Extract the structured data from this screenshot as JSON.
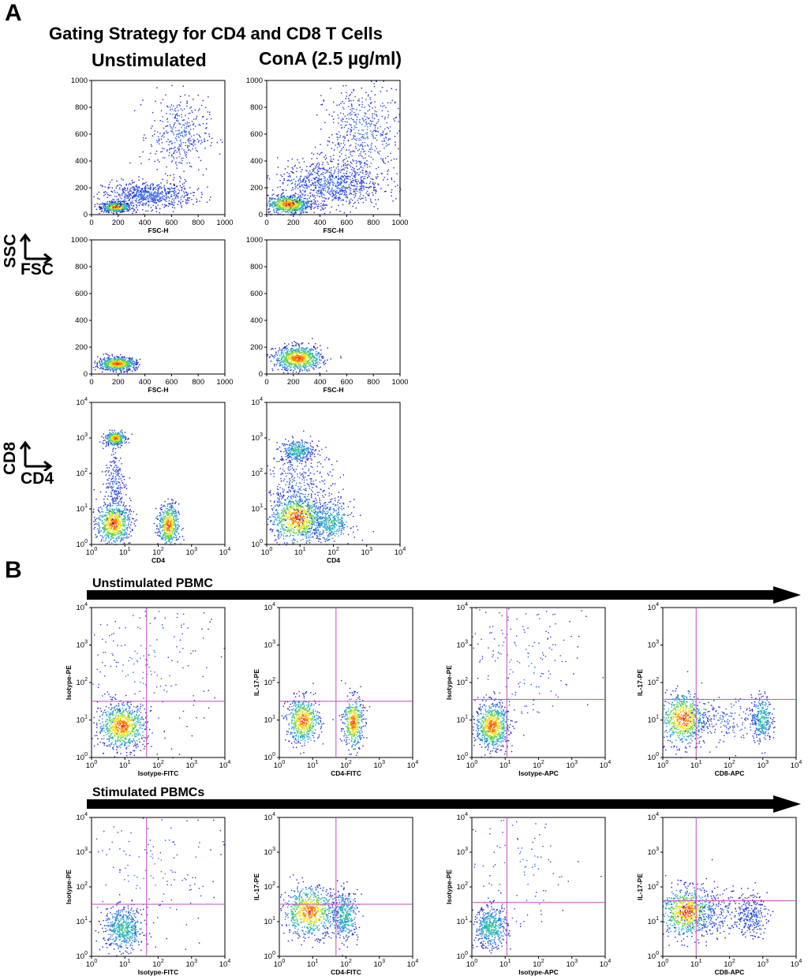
{
  "panel_a_label": "A",
  "panel_b_label": "B",
  "panel_a_title": "Gating Strategy for CD4 and CD8 T Cells",
  "conditions": [
    "Unstimulated",
    "ConA (2.5 µg/ml)"
  ],
  "side_labels": {
    "scatter_y": "SSC",
    "scatter_x": "FSC",
    "marker_y": "CD8",
    "marker_x": "CD4"
  },
  "row_labels_b": [
    "Unstimulated PBMC",
    "Stimulated PBMCs"
  ],
  "colors": {
    "density_low": "#1e2ad8",
    "density_mid": "#26b0c0",
    "density_high": "#ff2200",
    "quadrant": "#c04cc0",
    "arrow": "#000000"
  },
  "chart_data": [
    {
      "id": "a-unstim-all",
      "type": "scatter",
      "xlabel": "FSC-H",
      "ylabel": "",
      "xlim": [
        0,
        1000
      ],
      "ylim": [
        0,
        1000
      ],
      "scale": "linear",
      "xticks": [
        "0",
        "200",
        "400",
        "600",
        "800",
        "1000"
      ],
      "yticks": [
        "0",
        "200",
        "400",
        "600",
        "800",
        "1000"
      ],
      "clusters": [
        {
          "x": 180,
          "y": 60,
          "spread": [
            55,
            18
          ],
          "n": 600,
          "density": "high"
        },
        {
          "x": 420,
          "y": 150,
          "spread": [
            170,
            50
          ],
          "n": 700,
          "density": "low"
        },
        {
          "x": 650,
          "y": 600,
          "spread": [
            110,
            140
          ],
          "n": 380,
          "density": "low"
        }
      ]
    },
    {
      "id": "a-cona-all",
      "type": "scatter",
      "xlabel": "FSC-H",
      "ylabel": "",
      "xlim": [
        0,
        1000
      ],
      "ylim": [
        0,
        1000
      ],
      "scale": "linear",
      "xticks": [
        "0",
        "200",
        "400",
        "600",
        "800",
        "1000"
      ],
      "yticks": [
        "0",
        "200",
        "400",
        "600",
        "800",
        "1000"
      ],
      "clusters": [
        {
          "x": 160,
          "y": 80,
          "spread": [
            80,
            35
          ],
          "n": 700,
          "density": "high"
        },
        {
          "x": 480,
          "y": 230,
          "spread": [
            200,
            90
          ],
          "n": 900,
          "density": "low"
        },
        {
          "x": 720,
          "y": 620,
          "spread": [
            140,
            170
          ],
          "n": 500,
          "density": "low"
        }
      ]
    },
    {
      "id": "a-unstim-gated",
      "type": "scatter",
      "xlabel": "FSC-H",
      "ylabel": "",
      "xlim": [
        0,
        1000
      ],
      "ylim": [
        0,
        1000
      ],
      "scale": "linear",
      "xticks": [
        "0",
        "200",
        "400",
        "600",
        "800",
        "1000"
      ],
      "yticks": [
        "0",
        "200",
        "400",
        "600",
        "800",
        "1000"
      ],
      "clusters": [
        {
          "x": 190,
          "y": 80,
          "spread": [
            70,
            25
          ],
          "n": 700,
          "density": "high"
        }
      ]
    },
    {
      "id": "a-cona-gated",
      "type": "scatter",
      "xlabel": "FSC-H",
      "ylabel": "",
      "xlim": [
        0,
        1000
      ],
      "ylim": [
        0,
        1000
      ],
      "scale": "linear",
      "xticks": [
        "0",
        "200",
        "400",
        "600",
        "800",
        "1000"
      ],
      "yticks": [
        "0",
        "200",
        "400",
        "600",
        "800",
        "1000"
      ],
      "clusters": [
        {
          "x": 230,
          "y": 120,
          "spread": [
            90,
            45
          ],
          "n": 800,
          "density": "high"
        }
      ]
    },
    {
      "id": "a-unstim-cd4cd8",
      "type": "scatter",
      "xlabel": "CD4",
      "ylabel": "",
      "xlim": [
        0,
        4
      ],
      "ylim": [
        0,
        4
      ],
      "scale": "log",
      "xticks": [
        "10",
        "10",
        "10",
        "10",
        "10"
      ],
      "yticks": [
        "10",
        "10",
        "10",
        "10",
        "10"
      ],
      "exponents": [
        "0",
        "1",
        "2",
        "3",
        "4"
      ],
      "clusters": [
        {
          "x": 0.7,
          "y": 3.0,
          "spread": [
            0.15,
            0.1
          ],
          "n": 350,
          "density": "high"
        },
        {
          "x": 0.65,
          "y": 0.6,
          "spread": [
            0.25,
            0.3
          ],
          "n": 700,
          "density": "high"
        },
        {
          "x": 2.3,
          "y": 0.55,
          "spread": [
            0.15,
            0.3
          ],
          "n": 500,
          "density": "high"
        },
        {
          "x": 0.7,
          "y": 1.8,
          "spread": [
            0.15,
            0.5
          ],
          "n": 200,
          "density": "low"
        }
      ]
    },
    {
      "id": "a-cona-cd4cd8",
      "type": "scatter",
      "xlabel": "CD4",
      "ylabel": "",
      "xlim": [
        0,
        4
      ],
      "ylim": [
        0,
        4
      ],
      "scale": "log",
      "xticks": [
        "10",
        "10",
        "10",
        "10",
        "10"
      ],
      "yticks": [
        "10",
        "10",
        "10",
        "10",
        "10"
      ],
      "exponents": [
        "0",
        "1",
        "2",
        "3",
        "4"
      ],
      "clusters": [
        {
          "x": 0.9,
          "y": 2.65,
          "spread": [
            0.25,
            0.15
          ],
          "n": 300,
          "density": "mid"
        },
        {
          "x": 0.9,
          "y": 0.75,
          "spread": [
            0.4,
            0.35
          ],
          "n": 900,
          "density": "high"
        },
        {
          "x": 1.9,
          "y": 0.65,
          "spread": [
            0.3,
            0.3
          ],
          "n": 400,
          "density": "mid"
        },
        {
          "x": 1.0,
          "y": 1.7,
          "spread": [
            0.5,
            0.55
          ],
          "n": 350,
          "density": "low"
        }
      ]
    },
    {
      "id": "b-unstim-1",
      "type": "scatter",
      "xlabel": "Isotype-FITC",
      "ylabel": "Isotype-PE",
      "xlim": [
        0,
        4
      ],
      "ylim": [
        0,
        4
      ],
      "scale": "log",
      "quadrant": [
        1.65,
        1.5
      ],
      "xticks": [
        "10",
        "10",
        "10",
        "10",
        "10"
      ],
      "yticks": [
        "10",
        "10",
        "10",
        "10",
        "10"
      ],
      "exponents": [
        "0",
        "1",
        "2",
        "3",
        "4"
      ],
      "clusters": [
        {
          "x": 0.9,
          "y": 0.85,
          "spread": [
            0.35,
            0.3
          ],
          "n": 800,
          "density": "high"
        },
        {
          "x": 1.5,
          "y": 2.5,
          "spread": [
            1.2,
            1.2
          ],
          "n": 250,
          "density": "low"
        }
      ]
    },
    {
      "id": "b-unstim-2",
      "type": "scatter",
      "xlabel": "CD4-FITC",
      "ylabel": "IL-17-PE",
      "xlim": [
        0,
        4
      ],
      "ylim": [
        0,
        4
      ],
      "scale": "log",
      "quadrant": [
        1.7,
        1.5
      ],
      "xticks": [
        "10",
        "10",
        "10",
        "10",
        "10"
      ],
      "yticks": [
        "10",
        "10",
        "10",
        "10",
        "10"
      ],
      "exponents": [
        "0",
        "1",
        "2",
        "3",
        "4"
      ],
      "clusters": [
        {
          "x": 0.7,
          "y": 1.0,
          "spread": [
            0.25,
            0.3
          ],
          "n": 600,
          "density": "high"
        },
        {
          "x": 2.2,
          "y": 0.95,
          "spread": [
            0.15,
            0.35
          ],
          "n": 450,
          "density": "high"
        }
      ]
    },
    {
      "id": "b-unstim-3",
      "type": "scatter",
      "xlabel": "Isotype-APC",
      "ylabel": "Isotype-PE",
      "xlim": [
        0,
        4
      ],
      "ylim": [
        0,
        4
      ],
      "scale": "log",
      "quadrant": [
        1.05,
        1.55
      ],
      "xticks": [
        "10",
        "10",
        "10",
        "10",
        "10"
      ],
      "yticks": [
        "10",
        "10",
        "10",
        "10",
        "10"
      ],
      "exponents": [
        "0",
        "1",
        "2",
        "3",
        "4"
      ],
      "clusters": [
        {
          "x": 0.6,
          "y": 0.85,
          "spread": [
            0.25,
            0.3
          ],
          "n": 750,
          "density": "high"
        },
        {
          "x": 1.3,
          "y": 2.6,
          "spread": [
            1.0,
            1.1
          ],
          "n": 220,
          "density": "low"
        }
      ]
    },
    {
      "id": "b-unstim-4",
      "type": "scatter",
      "xlabel": "CD8-APC",
      "ylabel": "IL-17-PE",
      "xlim": [
        0,
        4
      ],
      "ylim": [
        0,
        4
      ],
      "scale": "log",
      "quadrant": [
        1.0,
        1.55
      ],
      "xticks": [
        "10",
        "10",
        "10",
        "10",
        "10"
      ],
      "yticks": [
        "10",
        "10",
        "10",
        "10",
        "10"
      ],
      "exponents": [
        "0",
        "1",
        "2",
        "3",
        "4"
      ],
      "clusters": [
        {
          "x": 0.6,
          "y": 1.05,
          "spread": [
            0.35,
            0.35
          ],
          "n": 700,
          "density": "high"
        },
        {
          "x": 2.95,
          "y": 1.05,
          "spread": [
            0.15,
            0.3
          ],
          "n": 300,
          "density": "mid"
        },
        {
          "x": 1.8,
          "y": 1.0,
          "spread": [
            0.6,
            0.3
          ],
          "n": 200,
          "density": "low"
        }
      ]
    },
    {
      "id": "b-stim-1",
      "type": "scatter",
      "xlabel": "Isotype-FITC",
      "ylabel": "Isotype-PE",
      "xlim": [
        0,
        4
      ],
      "ylim": [
        0,
        4
      ],
      "scale": "log",
      "quadrant": [
        1.65,
        1.5
      ],
      "xticks": [
        "10",
        "10",
        "10",
        "10",
        "10"
      ],
      "yticks": [
        "10",
        "10",
        "10",
        "10",
        "10"
      ],
      "exponents": [
        "0",
        "1",
        "2",
        "3",
        "4"
      ],
      "clusters": [
        {
          "x": 0.95,
          "y": 0.8,
          "spread": [
            0.3,
            0.3
          ],
          "n": 550,
          "density": "mid"
        },
        {
          "x": 1.6,
          "y": 2.4,
          "spread": [
            1.2,
            1.2
          ],
          "n": 150,
          "density": "low"
        }
      ]
    },
    {
      "id": "b-stim-2",
      "type": "scatter",
      "xlabel": "CD4-FITC",
      "ylabel": "IL-17-PE",
      "xlim": [
        0,
        4
      ],
      "ylim": [
        0,
        4
      ],
      "scale": "log",
      "quadrant": [
        1.7,
        1.5
      ],
      "xticks": [
        "10",
        "10",
        "10",
        "10",
        "10"
      ],
      "yticks": [
        "10",
        "10",
        "10",
        "10",
        "10"
      ],
      "exponents": [
        "0",
        "1",
        "2",
        "3",
        "4"
      ],
      "clusters": [
        {
          "x": 0.9,
          "y": 1.3,
          "spread": [
            0.4,
            0.35
          ],
          "n": 750,
          "density": "high"
        },
        {
          "x": 1.95,
          "y": 1.2,
          "spread": [
            0.2,
            0.35
          ],
          "n": 400,
          "density": "mid"
        }
      ]
    },
    {
      "id": "b-stim-3",
      "type": "scatter",
      "xlabel": "Isotype-APC",
      "ylabel": "Isotype-PE",
      "xlim": [
        0,
        4
      ],
      "ylim": [
        0,
        4
      ],
      "scale": "log",
      "quadrant": [
        1.05,
        1.55
      ],
      "xticks": [
        "10",
        "10",
        "10",
        "10",
        "10"
      ],
      "yticks": [
        "10",
        "10",
        "10",
        "10",
        "10"
      ],
      "exponents": [
        "0",
        "1",
        "2",
        "3",
        "4"
      ],
      "clusters": [
        {
          "x": 0.55,
          "y": 0.85,
          "spread": [
            0.25,
            0.3
          ],
          "n": 500,
          "density": "mid"
        },
        {
          "x": 1.4,
          "y": 2.6,
          "spread": [
            1.0,
            1.1
          ],
          "n": 120,
          "density": "low"
        }
      ]
    },
    {
      "id": "b-stim-4",
      "type": "scatter",
      "xlabel": "CD8-APC",
      "ylabel": "IL-17-PE",
      "xlim": [
        0,
        4
      ],
      "ylim": [
        0,
        4
      ],
      "scale": "log",
      "quadrant": [
        1.0,
        1.6
      ],
      "xticks": [
        "10",
        "10",
        "10",
        "10",
        "10"
      ],
      "yticks": [
        "10",
        "10",
        "10",
        "10",
        "10"
      ],
      "exponents": [
        "0",
        "1",
        "2",
        "3",
        "4"
      ],
      "clusters": [
        {
          "x": 0.7,
          "y": 1.3,
          "spread": [
            0.4,
            0.35
          ],
          "n": 750,
          "density": "high"
        },
        {
          "x": 2.6,
          "y": 1.2,
          "spread": [
            0.25,
            0.3
          ],
          "n": 250,
          "density": "low"
        },
        {
          "x": 1.6,
          "y": 1.3,
          "spread": [
            0.6,
            0.35
          ],
          "n": 250,
          "density": "low"
        }
      ]
    }
  ]
}
